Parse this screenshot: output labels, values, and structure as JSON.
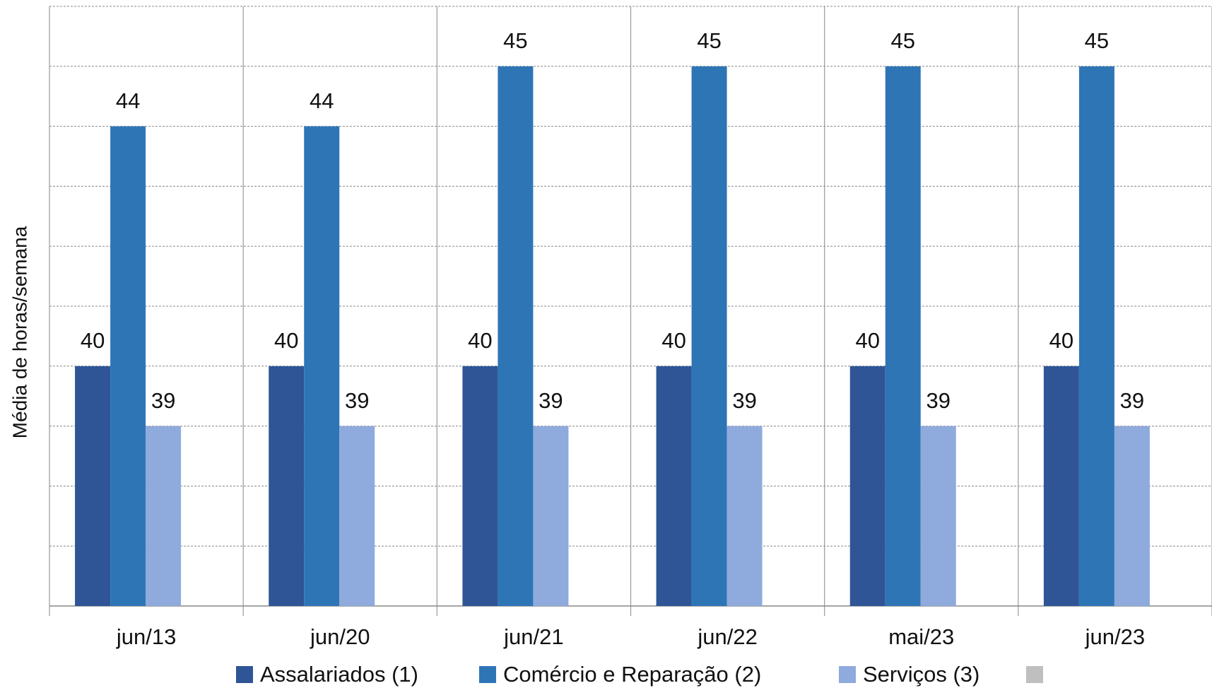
{
  "chart_data": {
    "type": "bar",
    "y_label": "Média de horas/semana",
    "categories": [
      "jun/13",
      "jun/20",
      "jun/21",
      "jun/22",
      "mai/23",
      "jun/23"
    ],
    "series": [
      {
        "name": "Assalariados (1)",
        "color": "#2f5597",
        "values": [
          40,
          40,
          40,
          40,
          40,
          40
        ]
      },
      {
        "name": "Comércio e Reparação (2)",
        "color": "#2e75b6",
        "values": [
          44,
          44,
          45,
          45,
          45,
          45
        ]
      },
      {
        "name": "Serviços (3)",
        "color": "#8faadc",
        "values": [
          39,
          39,
          39,
          39,
          39,
          39
        ]
      }
    ],
    "ylim": [
      36,
      46
    ],
    "yticks": [
      36,
      37,
      38,
      39,
      40,
      41,
      42,
      43,
      44,
      45,
      46
    ],
    "grid": true
  }
}
